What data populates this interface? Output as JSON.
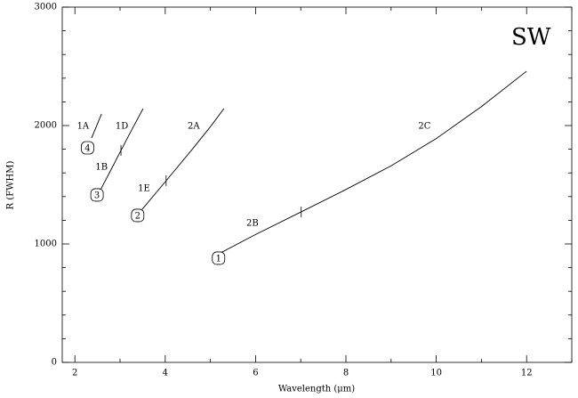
{
  "chart_data": {
    "type": "line",
    "xlabel": "Wavelength (μm)",
    "ylabel": "R (FWHM)",
    "xlim": [
      1.72,
      13
    ],
    "ylim": [
      0,
      3000
    ],
    "xticks": [
      2,
      4,
      6,
      8,
      10,
      12
    ],
    "yticks": [
      0,
      1000,
      2000,
      3000
    ],
    "xminor": [
      3,
      5,
      7,
      9,
      11,
      13
    ],
    "yminor": [
      200,
      400,
      600,
      800,
      1200,
      1400,
      1600,
      1800,
      2200,
      2400,
      2600,
      2800
    ],
    "color": "#000000",
    "series": [
      {
        "x": [
          2.37,
          2.59
        ],
        "y": [
          1895,
          2098
        ],
        "breaks": []
      },
      {
        "x": [
          2.57,
          2.8,
          3.02,
          3.26,
          3.51
        ],
        "y": [
          1459,
          1627,
          1790,
          1965,
          2143
        ],
        "breaks": [
          3.02
        ]
      },
      {
        "x": [
          3.49,
          4.02,
          4.6,
          5.0,
          5.3
        ],
        "y": [
          1293,
          1534,
          1800,
          1990,
          2143
        ],
        "breaks": [
          4.02
        ]
      },
      {
        "x": [
          5.26,
          6.0,
          7.01,
          8.0,
          9.0,
          10.0,
          11.0,
          12.0
        ],
        "y": [
          932,
          1080,
          1271,
          1460,
          1660,
          1890,
          2160,
          2459
        ],
        "breaks": [
          7.01
        ]
      }
    ],
    "annotations": [
      {
        "text": "1A",
        "x": 2.18,
        "y": 2000
      },
      {
        "text": "1D",
        "x": 3.04,
        "y": 2000
      },
      {
        "text": "2A",
        "x": 4.63,
        "y": 2000
      },
      {
        "text": "2C",
        "x": 9.74,
        "y": 2000
      },
      {
        "text": "1B",
        "x": 2.59,
        "y": 1654
      },
      {
        "text": "1E",
        "x": 3.53,
        "y": 1474
      },
      {
        "text": "2B",
        "x": 5.93,
        "y": 1180
      },
      {
        "text": "SW",
        "x": 12.1,
        "y": 2744,
        "large": true
      },
      {
        "text": "4",
        "x": 2.28,
        "y": 1812,
        "circled": true
      },
      {
        "text": "3",
        "x": 2.49,
        "y": 1414,
        "circled": true
      },
      {
        "text": "2",
        "x": 3.39,
        "y": 1241,
        "circled": true
      },
      {
        "text": "1",
        "x": 5.18,
        "y": 880,
        "circled": true
      }
    ]
  }
}
